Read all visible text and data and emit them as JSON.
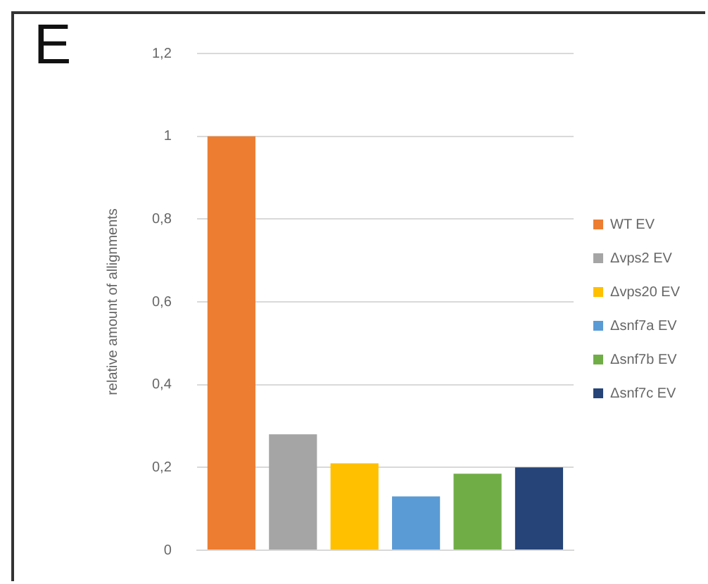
{
  "chart_data": {
    "type": "bar",
    "ylabel": "relative amount of allignments",
    "annotations": [
      "E"
    ],
    "categories": [
      null
    ],
    "series": [
      {
        "name": "WT EV",
        "color": "#ed7d31",
        "values": [
          1
        ]
      },
      {
        "name": "Δvps2 EV",
        "color": "#a5a5a5",
        "values": [
          0.28
        ]
      },
      {
        "name": "Δvps20 EV",
        "color": "#ffc000",
        "values": [
          0.21
        ]
      },
      {
        "name": "Δsnf7a EV",
        "color": "#5b9bd5",
        "values": [
          0.13
        ]
      },
      {
        "name": "Δsnf7b EV",
        "color": "#70ad47",
        "values": [
          0.185
        ]
      },
      {
        "name": "Δsnf7c EV",
        "color": "#264478",
        "values": [
          0.2
        ]
      }
    ],
    "ylim": [
      0,
      1.2
    ],
    "yticks": [
      {
        "value": 0,
        "label": "0"
      },
      {
        "value": 0.2,
        "label": "0,2"
      },
      {
        "value": 0.4,
        "label": "0,4"
      },
      {
        "value": 0.6,
        "label": "0,6"
      },
      {
        "value": 0.8,
        "label": "0,8"
      },
      {
        "value": 1,
        "label": "1"
      },
      {
        "value": 1.2,
        "label": "1,2"
      }
    ],
    "grid": "y",
    "legend": "right"
  }
}
